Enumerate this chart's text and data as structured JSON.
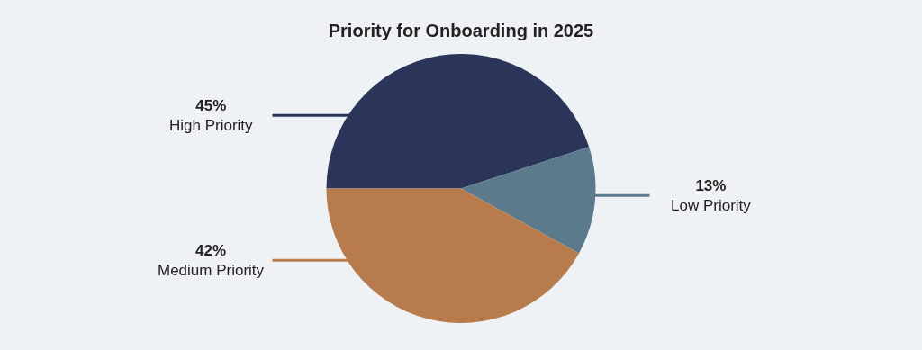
{
  "chart_data": {
    "type": "pie",
    "title": "Priority for Onboarding in 2025",
    "categories": [
      "High Priority",
      "Low Priority",
      "Medium Priority"
    ],
    "values": [
      45,
      13,
      42
    ],
    "value_labels": [
      "45%",
      "13%",
      "42%"
    ],
    "colors": [
      "#2b3459",
      "#5b7a8c",
      "#b87c4c"
    ]
  }
}
